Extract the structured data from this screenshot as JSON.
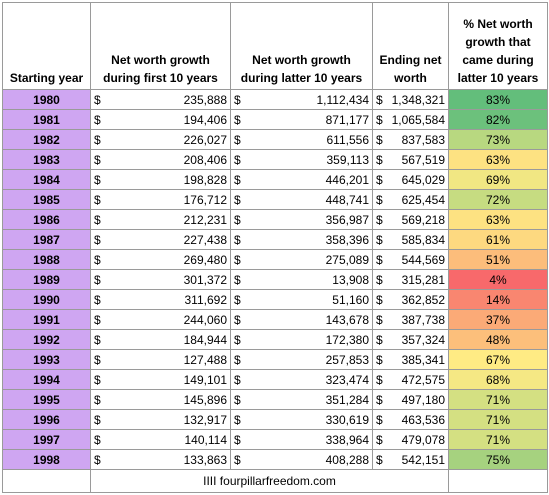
{
  "header": [
    "Starting year",
    "Net worth growth during first 10 years",
    "Net worth growth during latter 10 years",
    "Ending net worth",
    "% Net worth growth that came during latter 10 years"
  ],
  "currency": "$",
  "rows": [
    {
      "year": "1980",
      "first": "235,888",
      "latter": "1,112,434",
      "ending": "1,348,321",
      "pct": "83%",
      "color": "#63be7b"
    },
    {
      "year": "1981",
      "first": "194,406",
      "latter": "871,177",
      "ending": "1,065,584",
      "pct": "82%",
      "color": "#6cc17c"
    },
    {
      "year": "1982",
      "first": "226,027",
      "latter": "611,556",
      "ending": "837,583",
      "pct": "73%",
      "color": "#b8d880"
    },
    {
      "year": "1983",
      "first": "208,406",
      "latter": "359,113",
      "ending": "567,519",
      "pct": "63%",
      "color": "#fde282"
    },
    {
      "year": "1984",
      "first": "198,828",
      "latter": "446,201",
      "ending": "645,029",
      "pct": "69%",
      "color": "#f1e783"
    },
    {
      "year": "1985",
      "first": "176,712",
      "latter": "448,741",
      "ending": "625,454",
      "pct": "72%",
      "color": "#c6dc81"
    },
    {
      "year": "1986",
      "first": "212,231",
      "latter": "356,987",
      "ending": "569,218",
      "pct": "63%",
      "color": "#fde282"
    },
    {
      "year": "1987",
      "first": "227,438",
      "latter": "358,396",
      "ending": "585,834",
      "pct": "61%",
      "color": "#fdd980"
    },
    {
      "year": "1988",
      "first": "269,480",
      "latter": "275,089",
      "ending": "544,569",
      "pct": "51%",
      "color": "#fcbd7b"
    },
    {
      "year": "1989",
      "first": "301,372",
      "latter": "13,908",
      "ending": "315,281",
      "pct": "4%",
      "color": "#f8696b"
    },
    {
      "year": "1990",
      "first": "311,692",
      "latter": "51,160",
      "ending": "362,852",
      "pct": "14%",
      "color": "#f98670"
    },
    {
      "year": "1991",
      "first": "244,060",
      "latter": "143,678",
      "ending": "387,738",
      "pct": "37%",
      "color": "#fbaa77"
    },
    {
      "year": "1992",
      "first": "184,944",
      "latter": "172,380",
      "ending": "357,324",
      "pct": "48%",
      "color": "#fcbf7b"
    },
    {
      "year": "1993",
      "first": "127,488",
      "latter": "257,853",
      "ending": "385,341",
      "pct": "67%",
      "color": "#ffeb84"
    },
    {
      "year": "1994",
      "first": "149,101",
      "latter": "323,474",
      "ending": "472,575",
      "pct": "68%",
      "color": "#f5e884"
    },
    {
      "year": "1995",
      "first": "145,896",
      "latter": "351,284",
      "ending": "497,180",
      "pct": "71%",
      "color": "#d4e082"
    },
    {
      "year": "1996",
      "first": "132,917",
      "latter": "330,619",
      "ending": "463,536",
      "pct": "71%",
      "color": "#d4e082"
    },
    {
      "year": "1997",
      "first": "140,114",
      "latter": "338,964",
      "ending": "479,078",
      "pct": "71%",
      "color": "#d4e082"
    },
    {
      "year": "1998",
      "first": "133,863",
      "latter": "408,288",
      "ending": "542,151",
      "pct": "75%",
      "color": "#a6d27f"
    }
  ],
  "footer": "IIII fourpillarfreedom.com"
}
